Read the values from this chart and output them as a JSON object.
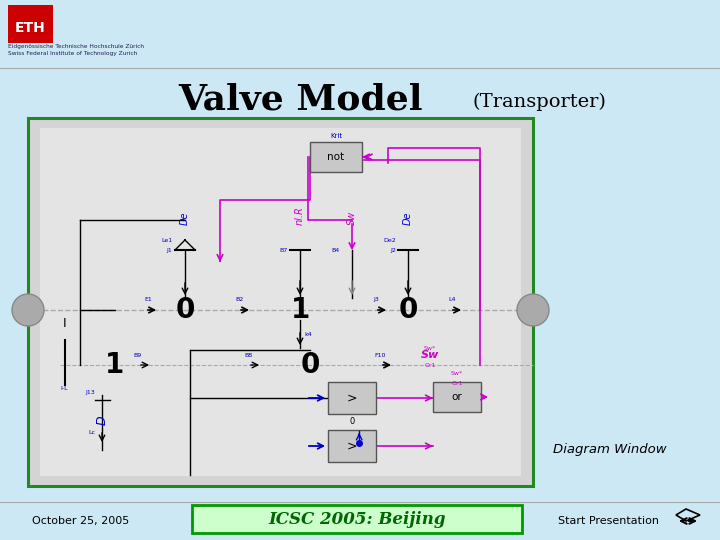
{
  "title_main": "Valve Model",
  "title_sub": "(Transporter)",
  "diagram_label": "Diagram Window",
  "footer_date": "October 25, 2005",
  "footer_center": "ICSC 2005: Beijing",
  "footer_right": "Start Presentation",
  "bg_color": "#cce8f4",
  "diagram_border": "#228822",
  "eth_text1": "Eidgenössische Technische Hochschule Zürich",
  "eth_text2": "Swiss Federal Institute of Technology Zurich"
}
